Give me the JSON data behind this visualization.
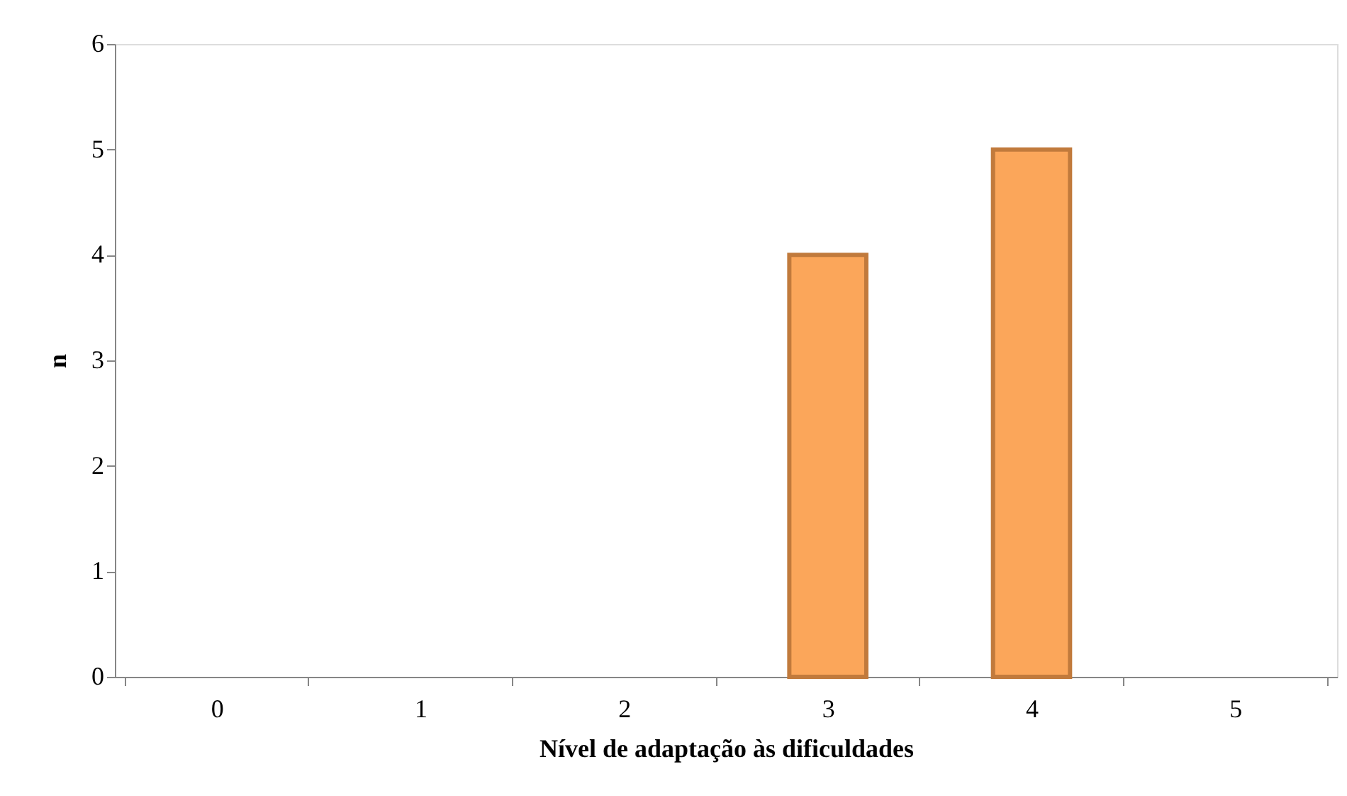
{
  "chart_data": {
    "type": "bar",
    "xlabel": "Nível de adaptação às dificuldades",
    "ylabel": "n",
    "categories": [
      "0",
      "1",
      "2",
      "3",
      "4",
      "5"
    ],
    "values": [
      0,
      0,
      0,
      4,
      5,
      0
    ],
    "color": "#fba65a",
    "ylim": [
      0,
      6
    ],
    "yticks": [
      0,
      1,
      2,
      3,
      4,
      5,
      6
    ],
    "grid": false
  }
}
